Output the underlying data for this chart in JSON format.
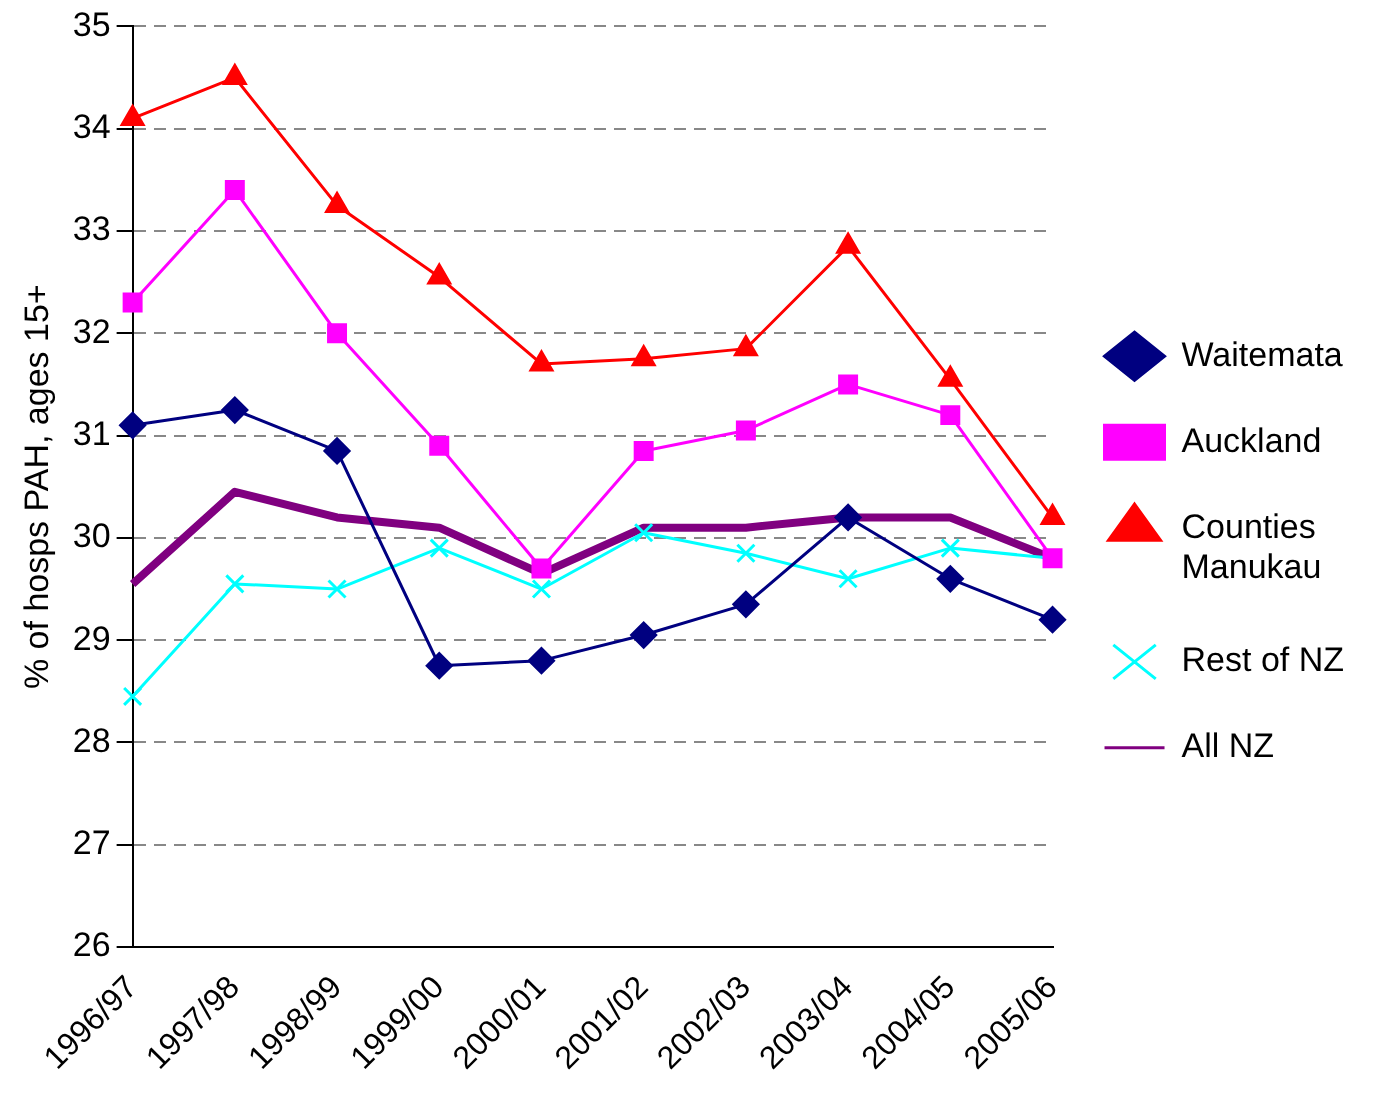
{
  "chart_data": {
    "type": "line",
    "ylabel": "% of hosps PAH, ages 15+",
    "categories": [
      "1996/97",
      "1997/98",
      "1998/99",
      "1999/00",
      "2000/01",
      "2001/02",
      "2002/03",
      "2003/04",
      "2004/05",
      "2005/06"
    ],
    "ylim": [
      26,
      35
    ],
    "yticks": [
      26,
      27,
      28,
      29,
      30,
      31,
      32,
      33,
      34,
      35
    ],
    "grid": "y",
    "legend": "right",
    "line_style": "solid",
    "series": [
      {
        "name": "Waitemata",
        "color": "#000080",
        "marker": "diamond",
        "values": [
          31.1,
          31.25,
          30.85,
          28.75,
          28.8,
          29.05,
          29.35,
          30.2,
          29.6,
          29.2
        ]
      },
      {
        "name": "Auckland",
        "color": "#ff00ff",
        "marker": "square",
        "values": [
          32.3,
          33.4,
          32.0,
          30.9,
          29.7,
          30.85,
          31.05,
          31.5,
          31.2,
          29.8
        ]
      },
      {
        "name": "Counties Manukau",
        "color": "#ff0000",
        "marker": "triangle",
        "values": [
          34.1,
          34.5,
          33.25,
          32.55,
          31.7,
          31.75,
          31.85,
          32.85,
          31.55,
          30.2
        ]
      },
      {
        "name": "Rest of NZ",
        "color": "#00ffff",
        "marker": "cross",
        "values": [
          28.45,
          29.55,
          29.5,
          29.9,
          29.5,
          30.05,
          29.85,
          29.6,
          29.9,
          29.8
        ]
      },
      {
        "name": "All NZ",
        "color": "#800080",
        "marker": "none",
        "values": [
          29.55,
          30.45,
          30.2,
          30.1,
          29.65,
          30.1,
          30.1,
          30.2,
          30.2,
          29.8
        ]
      }
    ]
  }
}
